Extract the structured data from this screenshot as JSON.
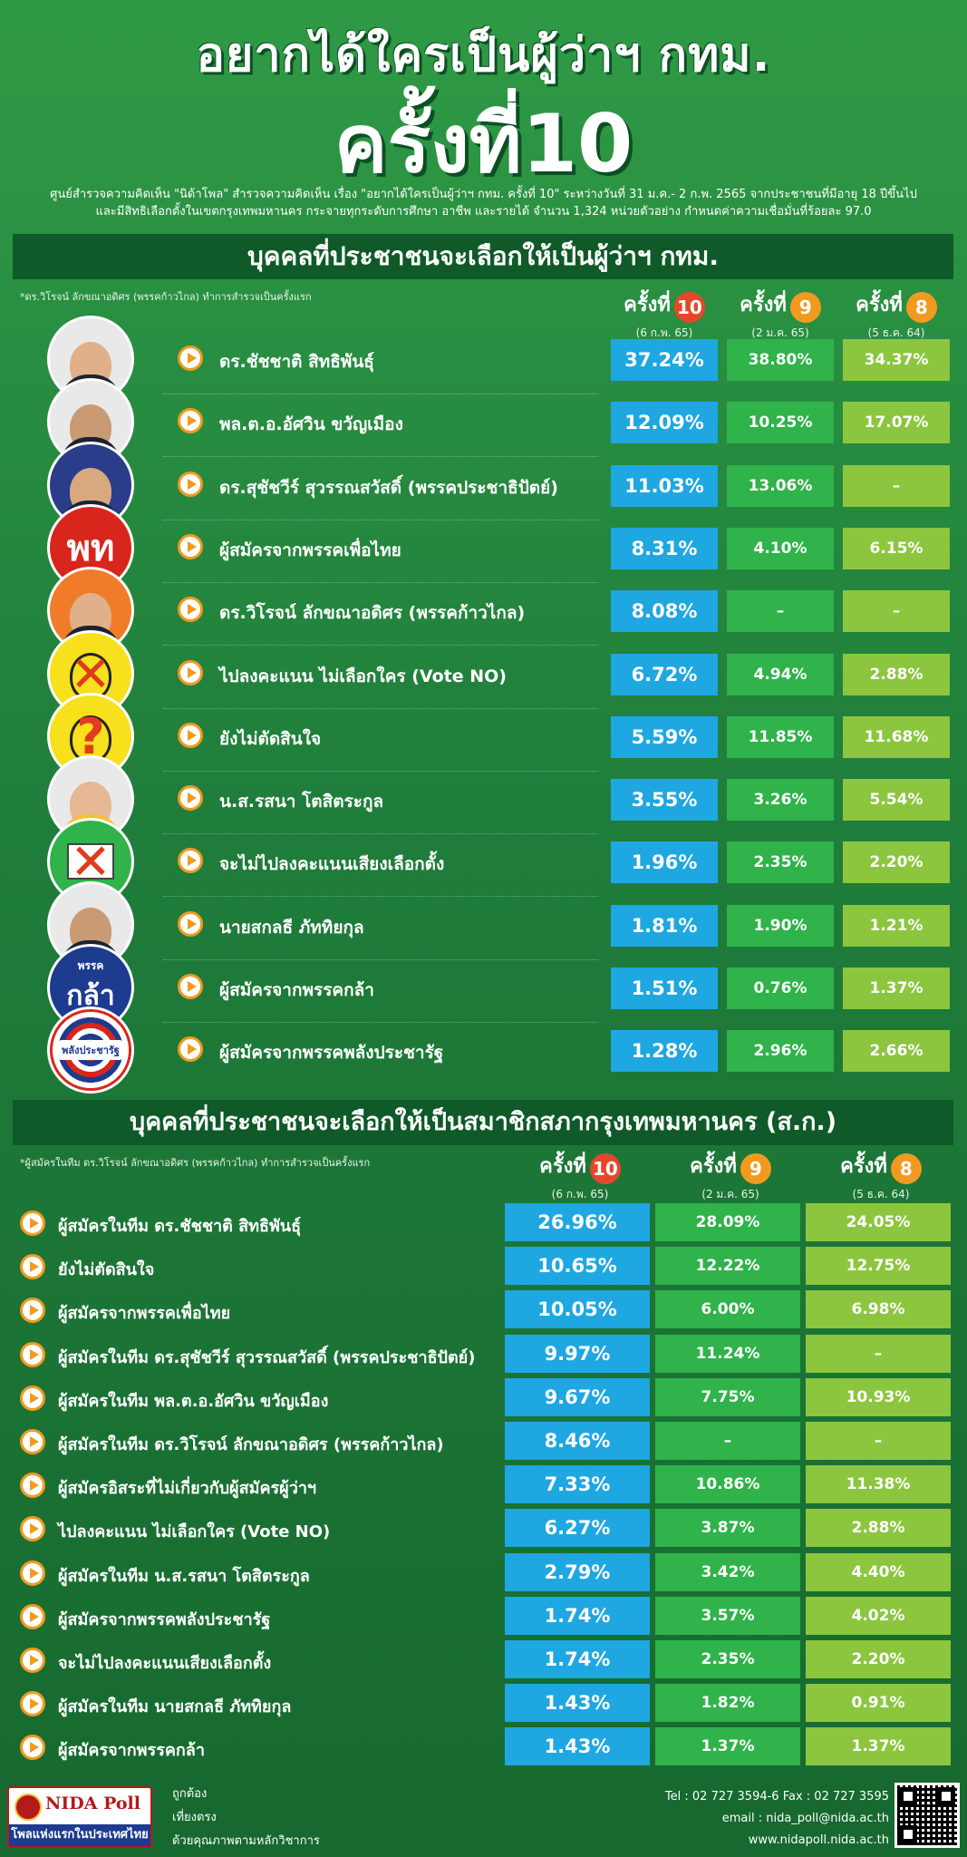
{
  "header": {
    "title_line1": "อยากได้ใครเป็นผู้ว่าฯ กทม.",
    "title_line2": "ครั้งที่10",
    "intro_line1": "ศูนย์สำรวจความคิดเห็น \"นิด้าโพล\" สำรวจความคิดเห็น เรื่อง \"อยากได้ใครเป็นผู้ว่าฯ กทม. ครั้งที่ 10\" ระหว่างวันที่ 31 ม.ค.- 2 ก.พ. 2565 จากประชาชนที่มีอายุ 18 ปีขึ้นไป",
    "intro_line2": "และมีสิทธิเลือกตั้งในเขตกรุงเทพมหานคร กระจายทุกระดับการศึกษา อาชีพ และรายได้ จำนวน 1,324 หน่วยตัวอย่าง กำหนดค่าความเชื่อมั่นที่ร้อยละ 97.0"
  },
  "colors": {
    "round10": "#1ea7e1",
    "round9": "#2fb34a",
    "round8": "#8cc63f",
    "badge": "#f29a1f",
    "badge10": "#e8462a"
  },
  "rounds": [
    {
      "label": "ครั้งที่",
      "num": "10",
      "date": "(6 ก.พ. 65)"
    },
    {
      "label": "ครั้งที่",
      "num": "9",
      "date": "(2 ม.ค. 65)"
    },
    {
      "label": "ครั้งที่",
      "num": "8",
      "date": "(5 ธ.ค. 64)"
    }
  ],
  "governor": {
    "title": "บุคคลที่ประชาชนจะเลือกให้เป็นผู้ว่าฯ กทม.",
    "note": "*ดร.วิโรจน์ ลักขณาอดิศร (พรรคก้าวไกล) ทำการสำรวจเป็นครั้งแรก",
    "rows": [
      {
        "label": "ดร.ชัชชาติ สิทธิพันธุ์",
        "icon": "person-photo",
        "values": [
          "37.24%",
          "38.80%",
          "34.37%"
        ]
      },
      {
        "label": "พล.ต.อ.อัศวิน ขวัญเมือง",
        "icon": "person-photo",
        "values": [
          "12.09%",
          "10.25%",
          "17.07%"
        ]
      },
      {
        "label": "ดร.สุชัชวีร์ สุวรรณสวัสดิ์ (พรรคประชาธิปัตย์)",
        "icon": "person-photo",
        "values": [
          "11.03%",
          "13.06%",
          "–"
        ]
      },
      {
        "label": "ผู้สมัครจากพรรคเพื่อไทย",
        "icon": "pheu-thai-logo",
        "logo_text": "พท",
        "values": [
          "8.31%",
          "4.10%",
          "6.15%"
        ]
      },
      {
        "label": "ดร.วิโรจน์ ลักขณาอดิศร (พรรคก้าวไกล)",
        "icon": "person-photo",
        "values": [
          "8.08%",
          "–",
          "–"
        ]
      },
      {
        "label": "ไปลงคะแนน ไม่เลือกใคร (Vote NO)",
        "icon": "vote-no-icon",
        "values": [
          "6.72%",
          "4.94%",
          "2.88%"
        ]
      },
      {
        "label": "ยังไม่ตัดสินใจ",
        "icon": "undecided-icon",
        "values": [
          "5.59%",
          "11.85%",
          "11.68%"
        ]
      },
      {
        "label": "น.ส.รสนา โตสิตระกูล",
        "icon": "person-photo",
        "values": [
          "3.55%",
          "3.26%",
          "5.54%"
        ]
      },
      {
        "label": "จะไม่ไปลงคะแนนเสียงเลือกตั้ง",
        "icon": "no-ballot-icon",
        "values": [
          "1.96%",
          "2.35%",
          "2.20%"
        ]
      },
      {
        "label": "นายสกลธี ภัททิยกุล",
        "icon": "person-photo",
        "values": [
          "1.81%",
          "1.90%",
          "1.21%"
        ]
      },
      {
        "label": "ผู้สมัครจากพรรคกล้า",
        "icon": "kla-party-logo",
        "logo_text": "กล้า",
        "logo_small": "พรรค",
        "values": [
          "1.51%",
          "0.76%",
          "1.37%"
        ]
      },
      {
        "label": "ผู้สมัครจากพรรคพลังประชารัฐ",
        "icon": "palang-pracharath-logo",
        "logo_text": "พลังประชารัฐ",
        "values": [
          "1.28%",
          "2.96%",
          "2.66%"
        ]
      }
    ]
  },
  "council": {
    "title": "บุคคลที่ประชาชนจะเลือกให้เป็นสมาชิกสภากรุงเทพมหานคร (ส.ก.)",
    "note": "*ผู้สมัครในทีม ดร.วิโรจน์ ลักขณาอดิศร (พรรคก้าวไกล) ทำการสำรวจเป็นครั้งแรก",
    "rows": [
      {
        "label": "ผู้สมัครในทีม ดร.ชัชชาติ สิทธิพันธุ์",
        "values": [
          "26.96%",
          "28.09%",
          "24.05%"
        ]
      },
      {
        "label": "ยังไม่ตัดสินใจ",
        "values": [
          "10.65%",
          "12.22%",
          "12.75%"
        ]
      },
      {
        "label": "ผู้สมัครจากพรรคเพื่อไทย",
        "values": [
          "10.05%",
          "6.00%",
          "6.98%"
        ]
      },
      {
        "label": "ผู้สมัครในทีม ดร.สุชัชวีร์ สุวรรณสวัสดิ์ (พรรคประชาธิปัตย์)",
        "values": [
          "9.97%",
          "11.24%",
          "–"
        ]
      },
      {
        "label": "ผู้สมัครในทีม พล.ต.อ.อัศวิน ขวัญเมือง",
        "values": [
          "9.67%",
          "7.75%",
          "10.93%"
        ]
      },
      {
        "label": "ผู้สมัครในทีม ดร.วิโรจน์ ลักขณาอดิศร (พรรคก้าวไกล)",
        "values": [
          "8.46%",
          "–",
          "–"
        ]
      },
      {
        "label": "ผู้สมัครอิสระที่ไม่เกี่ยวกับผู้สมัครผู้ว่าฯ",
        "values": [
          "7.33%",
          "10.86%",
          "11.38%"
        ]
      },
      {
        "label": "ไปลงคะแนน ไม่เลือกใคร (Vote NO)",
        "values": [
          "6.27%",
          "3.87%",
          "2.88%"
        ]
      },
      {
        "label": "ผู้สมัครในทีม น.ส.รสนา โตสิตระกูล",
        "values": [
          "2.79%",
          "3.42%",
          "4.40%"
        ]
      },
      {
        "label": "ผู้สมัครจากพรรคพลังประชารัฐ",
        "values": [
          "1.74%",
          "3.57%",
          "4.02%"
        ]
      },
      {
        "label": "จะไม่ไปลงคะแนนเสียงเลือกตั้ง",
        "values": [
          "1.74%",
          "2.35%",
          "2.20%"
        ]
      },
      {
        "label": "ผู้สมัครในทีม นายสกลธี ภัททิยกุล",
        "values": [
          "1.43%",
          "1.82%",
          "0.91%"
        ]
      },
      {
        "label": "ผู้สมัครจากพรรคกล้า",
        "values": [
          "1.43%",
          "1.37%",
          "1.37%"
        ]
      }
    ]
  },
  "footer": {
    "logo_name": "NIDA Poll",
    "logo_tag": "โพลแห่งแรกในประเทศไทย",
    "slogans": [
      "ถูกต้อง",
      "เที่ยงตรง",
      "ด้วยคุณภาพตามหลักวิชาการ"
    ],
    "tel": "Tel : 02 727 3594-6 Fax : 02 727 3595",
    "email": "email : nida_poll@nida.ac.th",
    "web": "www.nidapoll.nida.ac.th"
  }
}
